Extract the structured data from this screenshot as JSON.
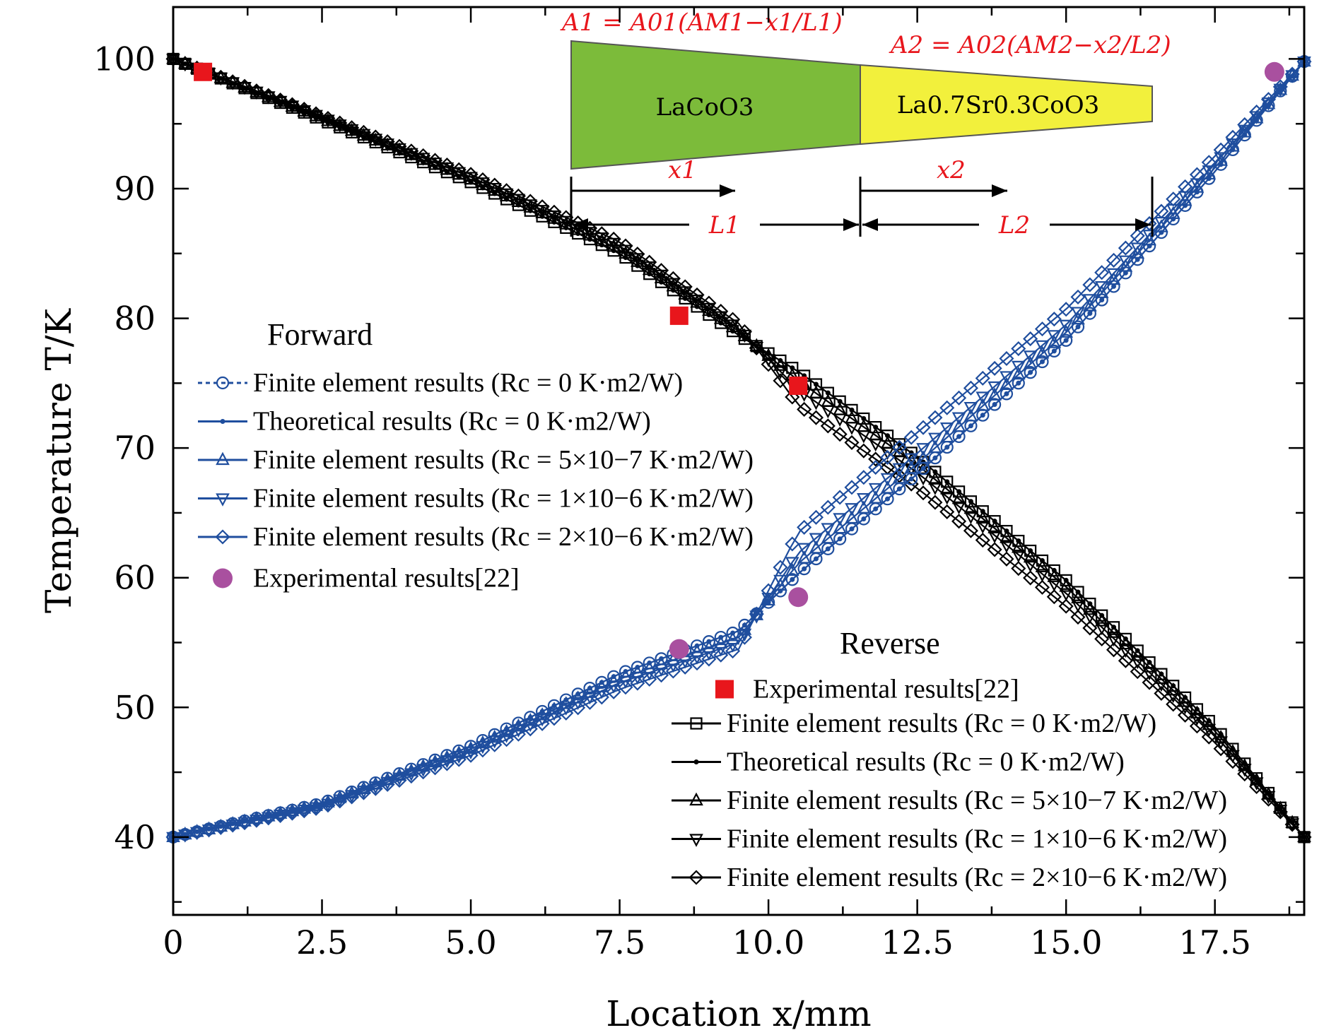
{
  "chart_data": {
    "type": "line",
    "xlabel": "Location x/mm",
    "ylabel": "Temperature T/K",
    "xlim": [
      0,
      19
    ],
    "ylim": [
      34,
      104
    ],
    "xticks": [
      0,
      2.5,
      5.0,
      7.5,
      10.0,
      12.5,
      15.0,
      17.5
    ],
    "xtick_labels": [
      "0",
      "2.5",
      "5.0",
      "7.5",
      "10.0",
      "12.5",
      "15.0",
      "17.5"
    ],
    "yticks": [
      40,
      50,
      60,
      70,
      80,
      90,
      100
    ],
    "ytick_labels": [
      "40",
      "50",
      "60",
      "70",
      "80",
      "90",
      "100"
    ],
    "grid": false,
    "interface_x": 9.5,
    "forward": {
      "title": "Forward",
      "color": "#1f4e9e",
      "series": [
        {
          "name": "Finite element results (Rc = 0 K·m2/W)",
          "marker": "circle",
          "x": [
            0,
            2.5,
            5.0,
            7.5,
            9.5,
            10.5,
            12.5,
            15.0,
            17.5,
            19
          ],
          "y": [
            40,
            42.6,
            47,
            52.6,
            55.9,
            60.3,
            68,
            78.3,
            91.3,
            99.8
          ]
        },
        {
          "name": "Theoretical results (Rc = 0 K·m2/W)",
          "marker": "dot",
          "x": [
            0,
            2.5,
            5.0,
            7.5,
            9.5,
            10.5,
            12.5,
            15.0,
            17.5,
            19
          ],
          "y": [
            40,
            42.6,
            47,
            52.6,
            55.9,
            60.3,
            68,
            78.3,
            91.3,
            99.8
          ]
        },
        {
          "name": "Finite element results (Rc = 5×10−7 K·m2/W)",
          "marker": "triangle-up",
          "x": [
            0,
            2.5,
            5.0,
            7.5,
            9.5,
            10.5,
            12.5,
            15.0,
            17.5,
            19
          ],
          "y": [
            40,
            42.5,
            46.8,
            52.2,
            55.4,
            61.1,
            68.8,
            78.9,
            91.6,
            99.8
          ]
        },
        {
          "name": "Finite element results (Rc = 1×10−6 K·m2/W)",
          "marker": "triangle-down",
          "x": [
            0,
            2.5,
            5.0,
            7.5,
            9.5,
            10.5,
            12.5,
            15.0,
            17.5,
            19
          ],
          "y": [
            40,
            42.4,
            46.6,
            51.9,
            55.0,
            61.9,
            69.6,
            79.5,
            91.9,
            99.8
          ]
        },
        {
          "name": "Finite element results (Rc = 2×10−6 K·m2/W)",
          "marker": "diamond",
          "x": [
            0,
            2.5,
            5.0,
            7.5,
            9.5,
            10.5,
            12.5,
            15.0,
            17.5,
            19
          ],
          "y": [
            40,
            42.3,
            46.3,
            51.4,
            54.5,
            63.5,
            71.2,
            80.7,
            92.5,
            99.8
          ]
        }
      ],
      "experimental": {
        "name": "Experimental results[22]",
        "color": "#a9509f",
        "x": [
          8.5,
          10.5,
          18.5
        ],
        "y": [
          54.5,
          58.5,
          99
        ]
      }
    },
    "reverse": {
      "title": "Reverse",
      "color": "#000000",
      "series": [
        {
          "name": "Finite element results (Rc = 0 K·m2/W)",
          "marker": "square",
          "x": [
            0,
            2.5,
            5.0,
            7.5,
            9.5,
            10.5,
            12.5,
            15.0,
            17.5,
            19
          ],
          "y": [
            100,
            95.3,
            90.5,
            85,
            78.7,
            75.9,
            69.3,
            59.8,
            48.5,
            40
          ]
        },
        {
          "name": "Theoretical results (Rc = 0 K·m2/W)",
          "marker": "dot",
          "x": [
            0,
            2.5,
            5.0,
            7.5,
            9.5,
            10.5,
            12.5,
            15.0,
            17.5,
            19
          ],
          "y": [
            100,
            95.3,
            90.5,
            85,
            78.7,
            75.9,
            69.3,
            59.8,
            48.5,
            40
          ]
        },
        {
          "name": "Finite element results (Rc = 5×10−7 K·m2/W)",
          "marker": "triangle-up",
          "x": [
            0,
            2.5,
            5.0,
            7.5,
            9.5,
            10.5,
            12.5,
            15.0,
            17.5,
            19
          ],
          "y": [
            100,
            95.4,
            90.7,
            85.3,
            79.0,
            75.2,
            68.7,
            59.3,
            48.2,
            40
          ]
        },
        {
          "name": "Finite element results (Rc = 1×10−6 K·m2/W)",
          "marker": "triangle-down",
          "x": [
            0,
            2.5,
            5.0,
            7.5,
            9.5,
            10.5,
            12.5,
            15.0,
            17.5,
            19
          ],
          "y": [
            100,
            95.5,
            90.9,
            85.6,
            79.2,
            74.5,
            68.1,
            58.8,
            47.9,
            40
          ]
        },
        {
          "name": "Finite element results (Rc = 2×10−6 K·m2/W)",
          "marker": "diamond",
          "x": [
            0,
            2.5,
            5.0,
            7.5,
            9.5,
            10.5,
            12.5,
            15.0,
            17.5,
            19
          ],
          "y": [
            100,
            95.6,
            91.1,
            85.9,
            79.6,
            73.3,
            66.9,
            57.8,
            47.3,
            40
          ]
        }
      ],
      "experimental": {
        "name": "Experimental results[22]",
        "color": "#e8161c",
        "x": [
          0.5,
          8.5,
          10.5
        ],
        "y": [
          99,
          80.2,
          74.8
        ]
      }
    },
    "inset": {
      "formula1": "A1 = A01(AM1−x1/L1)",
      "formula2": "A2 = A02(AM2−x2/L2)",
      "segment1_label": "LaCoO3",
      "segment2_label": "La0.7Sr0.3CoO3",
      "segment1_color": "#7cbb3a",
      "segment2_color": "#f2f03c",
      "x1_label": "x1",
      "x2_label": "x2",
      "L1_label": "L1",
      "L2_label": "L2"
    }
  }
}
